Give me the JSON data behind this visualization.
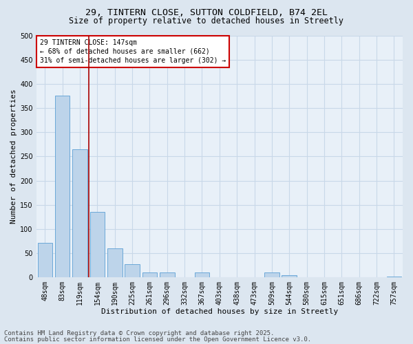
{
  "title_line1": "29, TINTERN CLOSE, SUTTON COLDFIELD, B74 2EL",
  "title_line2": "Size of property relative to detached houses in Streetly",
  "xlabel": "Distribution of detached houses by size in Streetly",
  "ylabel": "Number of detached properties",
  "categories": [
    "48sqm",
    "83sqm",
    "119sqm",
    "154sqm",
    "190sqm",
    "225sqm",
    "261sqm",
    "296sqm",
    "332sqm",
    "367sqm",
    "403sqm",
    "438sqm",
    "473sqm",
    "509sqm",
    "544sqm",
    "580sqm",
    "615sqm",
    "651sqm",
    "686sqm",
    "722sqm",
    "757sqm"
  ],
  "values": [
    72,
    375,
    265,
    135,
    60,
    28,
    10,
    10,
    0,
    10,
    0,
    0,
    0,
    10,
    5,
    0,
    0,
    0,
    0,
    0,
    2
  ],
  "bar_color": "#bdd4ea",
  "bar_edge_color": "#5a9fd4",
  "bar_width": 0.85,
  "ylim": [
    0,
    500
  ],
  "yticks": [
    0,
    50,
    100,
    150,
    200,
    250,
    300,
    350,
    400,
    450,
    500
  ],
  "red_line_x": 2.5,
  "annotation_text": "29 TINTERN CLOSE: 147sqm\n← 68% of detached houses are smaller (662)\n31% of semi-detached houses are larger (302) →",
  "annotation_box_color": "#ffffff",
  "annotation_border_color": "#cc0000",
  "footer_line1": "Contains HM Land Registry data © Crown copyright and database right 2025.",
  "footer_line2": "Contains public sector information licensed under the Open Government Licence v3.0.",
  "bg_color": "#dce6f0",
  "plot_bg_color": "#e8f0f8",
  "grid_color": "#c8d8e8",
  "title_fontsize": 9.5,
  "subtitle_fontsize": 8.5,
  "tick_fontsize": 7,
  "label_fontsize": 8,
  "footer_fontsize": 6.5
}
